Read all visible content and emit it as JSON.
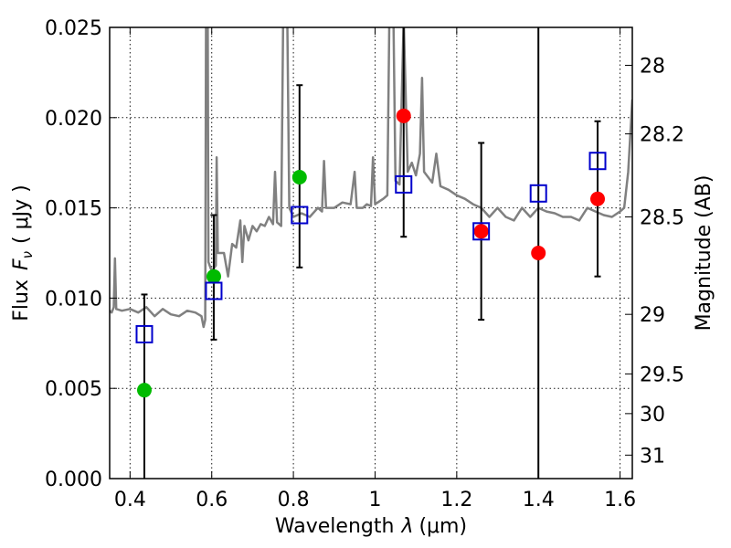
{
  "chart_data": {
    "type": "scatter",
    "xlabel_main": "Wavelength",
    "xlabel_symbol": "λ",
    "xlabel_unit": "(μm)",
    "ylabel_main": "Flux",
    "ylabel_symbol": "F",
    "ylabel_sub": "ν",
    "ylabel_unit": "( μJy )",
    "y2label": "Magnitude (AB)",
    "xlim": [
      0.35,
      1.63
    ],
    "ylim": [
      0.0,
      0.025
    ],
    "grid": true,
    "x_ticks": [
      {
        "value": 0.4,
        "label": "0.4"
      },
      {
        "value": 0.6,
        "label": "0.6"
      },
      {
        "value": 0.8,
        "label": "0.8"
      },
      {
        "value": 1.0,
        "label": "1"
      },
      {
        "value": 1.2,
        "label": "1.2"
      },
      {
        "value": 1.4,
        "label": "1.4"
      },
      {
        "value": 1.6,
        "label": "1.6"
      }
    ],
    "y_ticks": [
      {
        "value": 0.0,
        "label": "0.000"
      },
      {
        "value": 0.005,
        "label": "0.005"
      },
      {
        "value": 0.01,
        "label": "0.010"
      },
      {
        "value": 0.015,
        "label": "0.015"
      },
      {
        "value": 0.02,
        "label": "0.020"
      },
      {
        "value": 0.025,
        "label": "0.025"
      }
    ],
    "y2_ticks": [
      {
        "flux": 0.0229,
        "label": "28"
      },
      {
        "flux": 0.0191,
        "label": "28.2"
      },
      {
        "flux": 0.0145,
        "label": "28.5"
      },
      {
        "flux": 0.0091,
        "label": "29"
      },
      {
        "flux": 0.0058,
        "label": "29.5"
      },
      {
        "flux": 0.0036,
        "label": "30"
      },
      {
        "flux": 0.0013,
        "label": "31"
      }
    ],
    "series": [
      {
        "kind": "errorbar",
        "color": "#000000",
        "points": [
          {
            "x": 0.435,
            "low": 0.0,
            "high": 0.0102
          },
          {
            "x": 0.605,
            "low": 0.0077,
            "high": 0.0146
          },
          {
            "x": 0.815,
            "low": 0.0117,
            "high": 0.0218
          },
          {
            "x": 1.07,
            "low": 0.0134,
            "high": 0.0252
          },
          {
            "x": 1.26,
            "low": 0.0088,
            "high": 0.0186
          },
          {
            "x": 1.4,
            "low": 0.0,
            "high": 0.0252
          },
          {
            "x": 1.545,
            "low": 0.0112,
            "high": 0.0198
          }
        ]
      },
      {
        "kind": "model_spectrum",
        "color": "#808080",
        "points": [
          [
            0.35,
            0.0093
          ],
          [
            0.355,
            0.0092
          ],
          [
            0.36,
            0.0095
          ],
          [
            0.363,
            0.0122
          ],
          [
            0.366,
            0.0094
          ],
          [
            0.38,
            0.0093
          ],
          [
            0.4,
            0.0094
          ],
          [
            0.42,
            0.0092
          ],
          [
            0.44,
            0.0095
          ],
          [
            0.46,
            0.009
          ],
          [
            0.48,
            0.0094
          ],
          [
            0.5,
            0.0091
          ],
          [
            0.52,
            0.009
          ],
          [
            0.54,
            0.0093
          ],
          [
            0.56,
            0.0092
          ],
          [
            0.575,
            0.009
          ],
          [
            0.58,
            0.0084
          ],
          [
            0.584,
            0.0088
          ],
          [
            0.586,
            0.026
          ],
          [
            0.59,
            0.026
          ],
          [
            0.592,
            0.012
          ],
          [
            0.6,
            0.0115
          ],
          [
            0.61,
            0.0118
          ],
          [
            0.612,
            0.0178
          ],
          [
            0.615,
            0.0125
          ],
          [
            0.63,
            0.0125
          ],
          [
            0.64,
            0.0112
          ],
          [
            0.65,
            0.013
          ],
          [
            0.66,
            0.0128
          ],
          [
            0.67,
            0.0143
          ],
          [
            0.675,
            0.012
          ],
          [
            0.68,
            0.014
          ],
          [
            0.69,
            0.0132
          ],
          [
            0.7,
            0.014
          ],
          [
            0.71,
            0.0137
          ],
          [
            0.72,
            0.0141
          ],
          [
            0.73,
            0.014
          ],
          [
            0.74,
            0.0145
          ],
          [
            0.75,
            0.0141
          ],
          [
            0.755,
            0.017
          ],
          [
            0.76,
            0.0142
          ],
          [
            0.77,
            0.014
          ],
          [
            0.775,
            0.0255
          ],
          [
            0.785,
            0.0255
          ],
          [
            0.79,
            0.015
          ],
          [
            0.8,
            0.0145
          ],
          [
            0.82,
            0.0147
          ],
          [
            0.84,
            0.0145
          ],
          [
            0.86,
            0.015
          ],
          [
            0.87,
            0.0148
          ],
          [
            0.875,
            0.0176
          ],
          [
            0.88,
            0.015
          ],
          [
            0.9,
            0.015
          ],
          [
            0.92,
            0.0153
          ],
          [
            0.94,
            0.0152
          ],
          [
            0.95,
            0.017
          ],
          [
            0.955,
            0.015
          ],
          [
            0.97,
            0.015
          ],
          [
            0.98,
            0.0152
          ],
          [
            0.99,
            0.0151
          ],
          [
            0.995,
            0.0178
          ],
          [
            1.0,
            0.0152
          ],
          [
            1.02,
            0.0155
          ],
          [
            1.03,
            0.0157
          ],
          [
            1.035,
            0.0255
          ],
          [
            1.045,
            0.0255
          ],
          [
            1.05,
            0.0165
          ],
          [
            1.06,
            0.0163
          ],
          [
            1.07,
            0.0255
          ],
          [
            1.08,
            0.017
          ],
          [
            1.09,
            0.0175
          ],
          [
            1.1,
            0.0168
          ],
          [
            1.11,
            0.018
          ],
          [
            1.115,
            0.0222
          ],
          [
            1.12,
            0.017
          ],
          [
            1.14,
            0.0164
          ],
          [
            1.15,
            0.018
          ],
          [
            1.16,
            0.0162
          ],
          [
            1.18,
            0.016
          ],
          [
            1.2,
            0.0157
          ],
          [
            1.22,
            0.0155
          ],
          [
            1.24,
            0.0152
          ],
          [
            1.26,
            0.015
          ],
          [
            1.28,
            0.0145
          ],
          [
            1.3,
            0.015
          ],
          [
            1.32,
            0.0145
          ],
          [
            1.34,
            0.0143
          ],
          [
            1.36,
            0.015
          ],
          [
            1.38,
            0.0145
          ],
          [
            1.4,
            0.015
          ],
          [
            1.42,
            0.0148
          ],
          [
            1.44,
            0.0147
          ],
          [
            1.46,
            0.0145
          ],
          [
            1.48,
            0.0145
          ],
          [
            1.5,
            0.0143
          ],
          [
            1.52,
            0.015
          ],
          [
            1.54,
            0.0148
          ],
          [
            1.56,
            0.0146
          ],
          [
            1.58,
            0.0145
          ],
          [
            1.6,
            0.0148
          ],
          [
            1.61,
            0.015
          ],
          [
            1.62,
            0.017
          ],
          [
            1.63,
            0.021
          ]
        ]
      },
      {
        "kind": "filled_circle",
        "color": "#00bb00",
        "points": [
          {
            "x": 0.435,
            "y": 0.0049
          },
          {
            "x": 0.605,
            "y": 0.0112
          },
          {
            "x": 0.815,
            "y": 0.0167
          }
        ]
      },
      {
        "kind": "filled_circle",
        "color": "#ff0000",
        "points": [
          {
            "x": 1.07,
            "y": 0.0201
          },
          {
            "x": 1.26,
            "y": 0.0137
          },
          {
            "x": 1.4,
            "y": 0.0125
          },
          {
            "x": 1.545,
            "y": 0.0155
          }
        ]
      },
      {
        "kind": "open_square",
        "color": "#0000cc",
        "points": [
          {
            "x": 0.435,
            "y": 0.008
          },
          {
            "x": 0.605,
            "y": 0.0104
          },
          {
            "x": 0.815,
            "y": 0.0146
          },
          {
            "x": 1.07,
            "y": 0.0163
          },
          {
            "x": 1.26,
            "y": 0.0137
          },
          {
            "x": 1.4,
            "y": 0.0158
          },
          {
            "x": 1.545,
            "y": 0.0176
          }
        ]
      }
    ]
  }
}
